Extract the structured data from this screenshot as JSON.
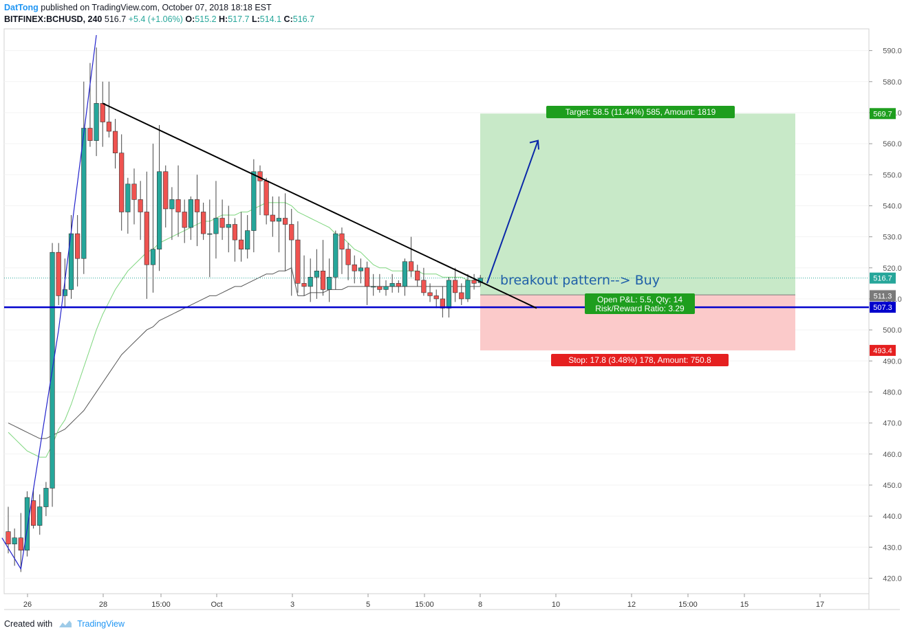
{
  "header": {
    "author": "DatTong",
    "published": "published on TradingView.com, October 07, 2018 18:18 EST",
    "symbol": "BITFINEX:BCHUSD, 240",
    "last": "516.7",
    "change": "+5.4 (+1.06%)",
    "o_label": "O:",
    "o_value": "515.2",
    "h_label": "H:",
    "h_value": "517.7",
    "l_label": "L:",
    "l_value": "514.1",
    "c_label": "C:",
    "c_value": "516.7"
  },
  "footer": {
    "created_with": "Created with",
    "brand": "TradingView"
  },
  "colors": {
    "up": "#26a69a",
    "down": "#ef5350",
    "ma_fast": "#7ed67e",
    "ma_slow": "#555555",
    "support": "#0000cc",
    "target_bg": "#c8e9c8",
    "stop_bg": "#fbcaca",
    "label_green": "#1e9e1e",
    "label_red": "#e52020"
  },
  "chart_data": {
    "type": "candlestick",
    "symbol": "BITFINEX:BCHUSD",
    "interval": "240",
    "ylim": [
      415,
      597
    ],
    "y_ticks": [
      420,
      430,
      440,
      450,
      460,
      470,
      480,
      490,
      500,
      510,
      520,
      530,
      540,
      550,
      560,
      570,
      580,
      590
    ],
    "x_ticks": [
      "26",
      "28",
      "15:00",
      "Oct",
      "3",
      "5",
      "15:00",
      "8",
      "10",
      "12",
      "15:00",
      "15",
      "17"
    ],
    "candles": [
      [
        435,
        443,
        428,
        431
      ],
      [
        431,
        436,
        424,
        433
      ],
      [
        433,
        441,
        422,
        429
      ],
      [
        429,
        448,
        427,
        446
      ],
      [
        445,
        449,
        436,
        437
      ],
      [
        437,
        447,
        434,
        443
      ],
      [
        443,
        451,
        440,
        449
      ],
      [
        449,
        528,
        443,
        525
      ],
      [
        525,
        528,
        508,
        511
      ],
      [
        511,
        523,
        507,
        513
      ],
      [
        513,
        537,
        510,
        531
      ],
      [
        531,
        537,
        514,
        523
      ],
      [
        523,
        580,
        518,
        565
      ],
      [
        565,
        586,
        559,
        561
      ],
      [
        561,
        591,
        556,
        573
      ],
      [
        573,
        580,
        559,
        567
      ],
      [
        567,
        580,
        562,
        564
      ],
      [
        564,
        568,
        552,
        557
      ],
      [
        557,
        563,
        532,
        538
      ],
      [
        538,
        549,
        531,
        547
      ],
      [
        547,
        552,
        534,
        542
      ],
      [
        542,
        548,
        529,
        538
      ],
      [
        538,
        551,
        510,
        521
      ],
      [
        521,
        560,
        512,
        526
      ],
      [
        526,
        566,
        519,
        551
      ],
      [
        551,
        553,
        533,
        539
      ],
      [
        539,
        546,
        529,
        542
      ],
      [
        542,
        553,
        530,
        538
      ],
      [
        538,
        542,
        528,
        533
      ],
      [
        533,
        543,
        529,
        542
      ],
      [
        542,
        550,
        527,
        538
      ],
      [
        538,
        541,
        529,
        531
      ],
      [
        531,
        542,
        517,
        531
      ],
      [
        531,
        548,
        523,
        536
      ],
      [
        536,
        542,
        529,
        533
      ],
      [
        533,
        540,
        525,
        534
      ],
      [
        534,
        536,
        522,
        529
      ],
      [
        529,
        538,
        522,
        526
      ],
      [
        526,
        537,
        523,
        532
      ],
      [
        532,
        555,
        525,
        551
      ],
      [
        551,
        553,
        537,
        548
      ],
      [
        548,
        549,
        534,
        537
      ],
      [
        537,
        543,
        530,
        535
      ],
      [
        535,
        543,
        525,
        536
      ],
      [
        536,
        544,
        519,
        534
      ],
      [
        534,
        539,
        511,
        529
      ],
      [
        529,
        535,
        512,
        515
      ],
      [
        515,
        524,
        511,
        514
      ],
      [
        514,
        523,
        509,
        517
      ],
      [
        517,
        526,
        510,
        519
      ],
      [
        519,
        529,
        511,
        513
      ],
      [
        513,
        523,
        509,
        517
      ],
      [
        517,
        532,
        513,
        531
      ],
      [
        531,
        533,
        518,
        526
      ],
      [
        526,
        528,
        516,
        521
      ],
      [
        521,
        524,
        515,
        519
      ],
      [
        519,
        523,
        515,
        520
      ],
      [
        520,
        522,
        508,
        514
      ],
      [
        514,
        518,
        511,
        514
      ],
      [
        514,
        518,
        512,
        513
      ],
      [
        513,
        516,
        511,
        514
      ],
      [
        514,
        518,
        512,
        515
      ],
      [
        515,
        516,
        512,
        514
      ],
      [
        514,
        523,
        511,
        522
      ],
      [
        522,
        530,
        517,
        519
      ],
      [
        519,
        521,
        514,
        516
      ],
      [
        516,
        520,
        511,
        512
      ],
      [
        512,
        515,
        509,
        511
      ],
      [
        511,
        513,
        507,
        510
      ],
      [
        510,
        514,
        504,
        507
      ],
      [
        507,
        517,
        504,
        516
      ],
      [
        516,
        520,
        509,
        512
      ],
      [
        512,
        515,
        508,
        510
      ],
      [
        510,
        518,
        509,
        516
      ],
      [
        516,
        518,
        513,
        515
      ],
      [
        515.2,
        517.7,
        514.1,
        516.7
      ]
    ],
    "ma_fast": [
      467,
      465,
      463,
      461,
      460,
      459,
      459,
      463,
      468,
      471,
      476,
      482,
      488,
      494,
      500,
      505,
      509,
      513,
      516,
      519,
      521,
      523,
      525,
      526,
      528,
      529,
      530,
      531,
      532,
      533,
      534,
      535,
      535,
      536,
      537,
      537,
      537,
      538,
      538,
      539,
      540,
      541,
      541,
      541,
      541,
      540,
      538,
      537,
      536,
      535,
      534,
      533,
      531,
      530,
      528,
      526,
      525,
      523,
      521,
      520,
      520,
      519,
      519,
      519,
      519,
      519,
      518,
      518,
      518,
      517,
      517,
      517,
      517,
      516,
      516,
      516
    ],
    "ma_slow": [
      470,
      469,
      468,
      467,
      466,
      465,
      465,
      466,
      467,
      468,
      470,
      472,
      474,
      477,
      480,
      483,
      486,
      489,
      492,
      494,
      496,
      498,
      500,
      501,
      503,
      504,
      505,
      506,
      507,
      508,
      509,
      510,
      511,
      511,
      512,
      513,
      514,
      514,
      515,
      516,
      517,
      518,
      518,
      519,
      519,
      520,
      511,
      511,
      512,
      512,
      512,
      513,
      513,
      513,
      514,
      514,
      514,
      514,
      514,
      514,
      514,
      514,
      514,
      514,
      514,
      514,
      514,
      514,
      514,
      514,
      514,
      514,
      514,
      514,
      514,
      514
    ],
    "trendline": {
      "from": [
        15,
        573
      ],
      "to": [
        85,
        507
      ]
    },
    "support_price": 507.3,
    "last_price": 516.7,
    "position": {
      "entry": 511.3,
      "target": 569.7,
      "stop": 493.4,
      "entry_tag": "511.3",
      "target_tag": "569.7",
      "stop_tag": "493.4",
      "target_label": "Target: 58.5 (11.44%) 585, Amount: 1819",
      "stop_label": "Stop: 17.8 (3.48%) 178, Amount: 750.8",
      "pnl_label": "Open P&L: 5.5, Qty: 14",
      "rr_label": "Risk/Reward Ratio: 3.29"
    },
    "price_tags": {
      "last": "516.7",
      "level": "511.2",
      "support": "507.3"
    },
    "annotation": "breakout pattern--> Buy"
  }
}
